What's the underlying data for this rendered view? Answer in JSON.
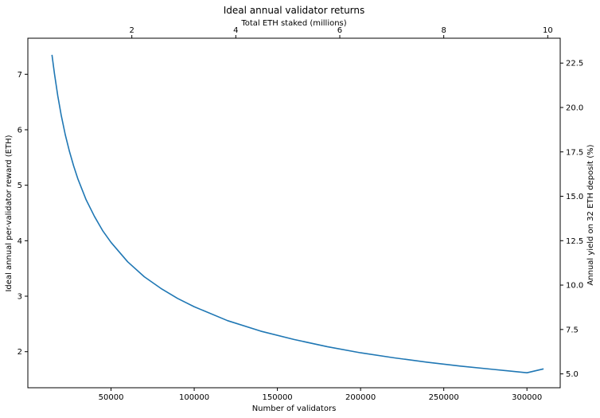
{
  "chart_data": {
    "type": "line",
    "title": "Ideal annual validator returns",
    "xlabel": "Number of validators",
    "ylabel": "Ideal annual per-validator reward (ETH)",
    "top_xlabel": "Total ETH staked (millions)",
    "right_ylabel": "Annual yield on 32 ETH deposit (%)",
    "xlim": [
      0,
      320000
    ],
    "ylim": [
      1.35,
      7.65
    ],
    "top_xlim": [
      0,
      10.24
    ],
    "right_ylim": [
      4.22,
      23.9
    ],
    "x_ticks": [
      {
        "value": 50000,
        "label": "50000"
      },
      {
        "value": 100000,
        "label": "100000"
      },
      {
        "value": 150000,
        "label": "150000"
      },
      {
        "value": 200000,
        "label": "200000"
      },
      {
        "value": 250000,
        "label": "250000"
      },
      {
        "value": 300000,
        "label": "300000"
      }
    ],
    "y_ticks": [
      {
        "value": 2,
        "label": "2"
      },
      {
        "value": 3,
        "label": "3"
      },
      {
        "value": 4,
        "label": "4"
      },
      {
        "value": 5,
        "label": "5"
      },
      {
        "value": 6,
        "label": "6"
      },
      {
        "value": 7,
        "label": "7"
      }
    ],
    "top_x_ticks": [
      {
        "value": 2,
        "label": "2"
      },
      {
        "value": 4,
        "label": "4"
      },
      {
        "value": 6,
        "label": "6"
      },
      {
        "value": 8,
        "label": "8"
      },
      {
        "value": 10,
        "label": "10"
      }
    ],
    "right_y_ticks": [
      {
        "value": 5.0,
        "label": "5.0"
      },
      {
        "value": 7.5,
        "label": "7.5"
      },
      {
        "value": 10.0,
        "label": "10.0"
      },
      {
        "value": 12.5,
        "label": "12.5"
      },
      {
        "value": 15.0,
        "label": "15.0"
      },
      {
        "value": 17.5,
        "label": "17.5"
      },
      {
        "value": 20.0,
        "label": "20.0"
      },
      {
        "value": 22.5,
        "label": "22.5"
      }
    ],
    "grid": false,
    "series": [
      {
        "color": "#1f77b4",
        "x": [
          14500,
          16000,
          18000,
          20000,
          22500,
          25000,
          27500,
          30000,
          35000,
          40000,
          45000,
          50000,
          60000,
          70000,
          80000,
          90000,
          100000,
          120000,
          140000,
          160000,
          180000,
          200000,
          220000,
          240000,
          260000,
          280000,
          300000,
          310000
        ],
        "values": [
          7.35,
          7.01,
          6.61,
          6.27,
          5.91,
          5.61,
          5.35,
          5.12,
          4.74,
          4.44,
          4.18,
          3.97,
          3.62,
          3.35,
          3.14,
          2.96,
          2.81,
          2.56,
          2.37,
          2.22,
          2.09,
          1.98,
          1.89,
          1.81,
          1.74,
          1.68,
          1.62,
          1.69
        ]
      }
    ]
  }
}
